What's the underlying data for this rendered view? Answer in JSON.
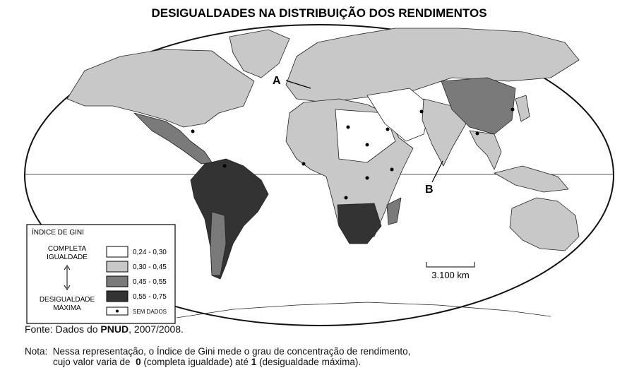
{
  "title": "DESIGUALDADES NA DISTRIBUIÇÃO DOS RENDIMENTOS",
  "map": {
    "labels": [
      "A",
      "B"
    ],
    "scale": "3.100 km"
  },
  "legend": {
    "title": "ÍNDICE DE GINI",
    "top_label": [
      "COMPLETA",
      "IGUALDADE"
    ],
    "bottom_label": [
      "DESIGUALDADE",
      "MÁXIMA"
    ],
    "items": [
      {
        "label": "0,24 - 0,30",
        "color": "#ffffff"
      },
      {
        "label": "0,30 - 0,45",
        "color": "#c8c8c8"
      },
      {
        "label": "0,45 - 0,55",
        "color": "#7a7a7a"
      },
      {
        "label": "0,55 - 0,75",
        "color": "#333333"
      },
      {
        "label": "SEM DADOS",
        "color": "#ffffff"
      }
    ]
  },
  "source": {
    "prefix": "Fonte: Dados do",
    "bold": "PNUD",
    "suffix": ", 2007/2008."
  },
  "note": {
    "label": "Nota:",
    "line1": "Nessa representação, o Índice de Gini mede o grau de concentração de rendimento,",
    "line2_a": "cujo valor varia de",
    "zero": "0",
    "line2_b": "(completa igualdade) até",
    "one": "1",
    "line2_c": "(desigualdade máxima)."
  }
}
